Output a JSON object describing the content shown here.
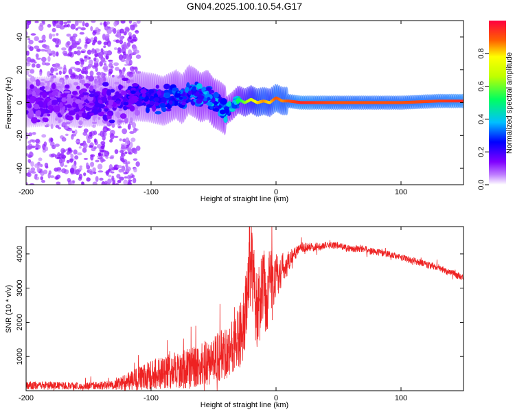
{
  "chart_data": [
    {
      "type": "heatmap",
      "title": "GN04.2025.100.10.54.G17",
      "xlabel": "Height of straight line (km)",
      "ylabel": "Frequency (Hz)",
      "xlim": [
        -200,
        150
      ],
      "ylim": [
        -50,
        50
      ],
      "xticks": [
        -200,
        -100,
        0,
        100
      ],
      "xtick_labels": [
        "-200",
        "-100",
        "0",
        "100"
      ],
      "yticks": [
        -40,
        -20,
        0,
        20,
        40
      ],
      "ytick_labels": [
        "-40",
        "-20",
        "0",
        "20",
        "40"
      ],
      "colorbar": {
        "label": "Normalized spectral amplitude",
        "range": [
          0,
          1
        ],
        "ticks": [
          0.0,
          0.2,
          0.4,
          0.6,
          0.8
        ],
        "tick_labels": [
          "0.0",
          "0.2",
          "0.4",
          "0.6",
          "0.8"
        ]
      },
      "ridge": {
        "x": [
          -200,
          -180,
          -160,
          -140,
          -120,
          -110,
          -100,
          -90,
          -80,
          -75,
          -70,
          -65,
          -60,
          -55,
          -50,
          -45,
          -40,
          -35,
          -30,
          -25,
          -20,
          -15,
          -10,
          -5,
          0,
          5,
          10,
          20,
          50,
          100,
          130,
          150
        ],
        "frequency": [
          0,
          1,
          0,
          1,
          2,
          4,
          3,
          1,
          5,
          2,
          8,
          6,
          3,
          5,
          0,
          -2,
          -5,
          -2,
          2,
          0,
          2,
          0,
          1,
          0,
          3,
          1,
          1,
          0,
          0,
          0,
          1,
          1
        ],
        "amplitude": [
          0.15,
          0.15,
          0.15,
          0.18,
          0.2,
          0.25,
          0.25,
          0.28,
          0.3,
          0.3,
          0.3,
          0.35,
          0.35,
          0.35,
          0.38,
          0.35,
          0.38,
          0.4,
          0.5,
          0.6,
          0.7,
          0.8,
          0.85,
          0.8,
          0.9,
          0.85,
          0.9,
          0.95,
          0.9,
          0.9,
          0.92,
          0.95
        ]
      }
    },
    {
      "type": "line",
      "xlabel": "Height of straight line (km)",
      "ylabel": "SNR (10 * v/v)",
      "xlim": [
        -200,
        150
      ],
      "ylim": [
        0,
        4800
      ],
      "xticks": [
        -200,
        -100,
        0,
        100
      ],
      "xtick_labels": [
        "-200",
        "-100",
        "0",
        "100"
      ],
      "yticks": [
        1000,
        2000,
        3000,
        4000
      ],
      "ytick_labels": [
        "1000",
        "2000",
        "3000",
        "4000"
      ],
      "color": "#ee2222",
      "series": [
        {
          "name": "SNR",
          "x": [
            -200,
            -180,
            -160,
            -140,
            -130,
            -120,
            -110,
            -100,
            -90,
            -80,
            -70,
            -60,
            -50,
            -45,
            -40,
            -35,
            -30,
            -25,
            -22,
            -20,
            -18,
            -15,
            -12,
            -10,
            -8,
            -5,
            -3,
            0,
            3,
            5,
            8,
            10,
            12,
            15,
            20,
            30,
            40,
            50,
            60,
            70,
            80,
            90,
            100,
            110,
            120,
            130,
            140,
            150
          ],
          "y": [
            150,
            150,
            140,
            150,
            160,
            250,
            350,
            450,
            550,
            600,
            650,
            750,
            900,
            1000,
            1150,
            1300,
            1500,
            2000,
            3500,
            4400,
            3000,
            2300,
            2700,
            3200,
            2500,
            3500,
            2900,
            3500,
            3300,
            3700,
            3500,
            3800,
            3900,
            4000,
            4200,
            4200,
            4250,
            4250,
            4150,
            4150,
            4050,
            4000,
            3900,
            3800,
            3700,
            3600,
            3450,
            3300
          ],
          "noise_amplitude": [
            120,
            120,
            110,
            120,
            130,
            250,
            350,
            450,
            500,
            550,
            600,
            650,
            700,
            750,
            800,
            850,
            900,
            1000,
            1200,
            1300,
            1300,
            1200,
            1200,
            1100,
            1100,
            1000,
            900,
            600,
            500,
            400,
            350,
            300,
            250,
            200,
            150,
            120,
            100,
            100,
            100,
            100,
            100,
            100,
            100,
            100,
            100,
            100,
            100,
            100
          ]
        }
      ]
    }
  ]
}
